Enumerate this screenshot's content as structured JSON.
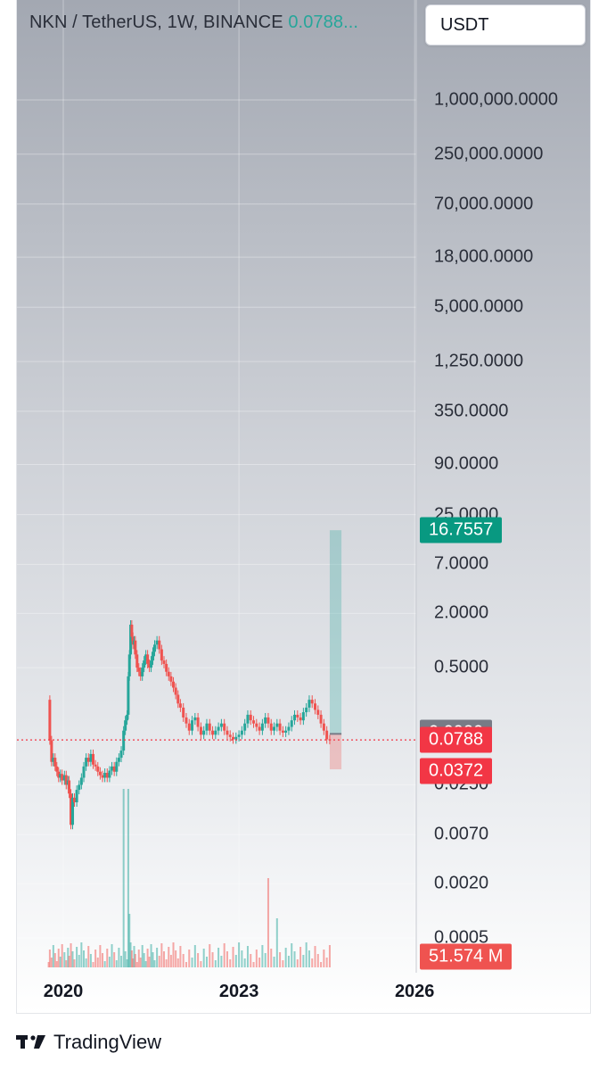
{
  "header": {
    "title_text": "NKN / TetherUS, 1W, BINANCE",
    "last_price_text": "0.0788...",
    "currency": "USDT"
  },
  "footer": {
    "brand": "TradingView",
    "logo_icon": "tradingview-logo-icon"
  },
  "colors": {
    "up": "#26a69a",
    "down": "#ef5350",
    "profit_zone": "#26a69a",
    "loss_zone": "#ef5350",
    "last_price_line": "#f23645",
    "entry_label": "#787b86",
    "target_label": "#089981",
    "stop_label": "#f23645",
    "last_label": "#f23645",
    "volume_label": "#ef5350"
  },
  "chart_data": {
    "type": "candlestick",
    "symbol": "NKN / TetherUS",
    "interval": "1W",
    "exchange": "BINANCE",
    "y_scale": "log",
    "y_ticks": [
      "1,000,000.0000",
      "250,000.0000",
      "70,000.0000",
      "18,000.0000",
      "5,000.0000",
      "1,250.0000",
      "350.0000",
      "90.0000",
      "25.0000",
      "7.0000",
      "2.0000",
      "0.5000",
      "0.0250",
      "0.0070",
      "0.0020",
      "0.0005"
    ],
    "y_tick_values": [
      1000000,
      250000,
      70000,
      18000,
      5000,
      1250,
      350,
      90,
      25,
      7,
      2,
      0.5,
      0.025,
      0.007,
      0.002,
      0.0005
    ],
    "x_ticks": [
      "2020",
      "2023",
      "2026"
    ],
    "x_tick_values": [
      2020,
      2023,
      2026
    ],
    "grid": true,
    "last_price": 0.0788,
    "price_labels": [
      {
        "key": "target",
        "text": "16.7557",
        "value": 16.7557
      },
      {
        "key": "entry",
        "text": "0.0920",
        "value": 0.092
      },
      {
        "key": "last",
        "text": "0.0788",
        "value": 0.0788
      },
      {
        "key": "stop",
        "text": "0.0372",
        "value": 0.0372
      }
    ],
    "volume_label": "51.574 M",
    "position": {
      "type": "long",
      "entry": 0.092,
      "target": 16.7557,
      "stop": 0.0372,
      "start": 2024.55,
      "end": 2024.75
    },
    "series_close": [
      [
        2019.75,
        0.22
      ],
      [
        2019.77,
        0.078
      ],
      [
        2019.8,
        0.045
      ],
      [
        2019.83,
        0.05
      ],
      [
        2019.86,
        0.04
      ],
      [
        2019.89,
        0.035
      ],
      [
        2019.92,
        0.03
      ],
      [
        2019.95,
        0.033
      ],
      [
        2019.98,
        0.028
      ],
      [
        2020.02,
        0.032
      ],
      [
        2020.05,
        0.025
      ],
      [
        2020.08,
        0.028
      ],
      [
        2020.1,
        0.02
      ],
      [
        2020.13,
        0.009
      ],
      [
        2020.16,
        0.018
      ],
      [
        2020.19,
        0.016
      ],
      [
        2020.23,
        0.022
      ],
      [
        2020.27,
        0.025
      ],
      [
        2020.31,
        0.03
      ],
      [
        2020.35,
        0.04
      ],
      [
        2020.39,
        0.05
      ],
      [
        2020.43,
        0.045
      ],
      [
        2020.47,
        0.055
      ],
      [
        2020.51,
        0.042
      ],
      [
        2020.55,
        0.04
      ],
      [
        2020.59,
        0.035
      ],
      [
        2020.63,
        0.032
      ],
      [
        2020.67,
        0.03
      ],
      [
        2020.71,
        0.034
      ],
      [
        2020.75,
        0.03
      ],
      [
        2020.79,
        0.036
      ],
      [
        2020.83,
        0.04
      ],
      [
        2020.87,
        0.035
      ],
      [
        2020.91,
        0.045
      ],
      [
        2020.95,
        0.05
      ],
      [
        2020.99,
        0.06
      ],
      [
        2021.03,
        0.1
      ],
      [
        2021.06,
        0.13
      ],
      [
        2021.09,
        0.15
      ],
      [
        2021.11,
        0.4
      ],
      [
        2021.13,
        0.7
      ],
      [
        2021.15,
        1.5
      ],
      [
        2021.17,
        1.1
      ],
      [
        2021.19,
        0.9
      ],
      [
        2021.21,
        1.0
      ],
      [
        2021.23,
        0.7
      ],
      [
        2021.26,
        0.5
      ],
      [
        2021.29,
        0.45
      ],
      [
        2021.32,
        0.4
      ],
      [
        2021.35,
        0.5
      ],
      [
        2021.38,
        0.6
      ],
      [
        2021.41,
        0.7
      ],
      [
        2021.44,
        0.55
      ],
      [
        2021.47,
        0.5
      ],
      [
        2021.5,
        0.6
      ],
      [
        2021.53,
        0.75
      ],
      [
        2021.56,
        0.9
      ],
      [
        2021.6,
        1.0
      ],
      [
        2021.64,
        0.8
      ],
      [
        2021.68,
        0.6
      ],
      [
        2021.72,
        0.55
      ],
      [
        2021.76,
        0.45
      ],
      [
        2021.8,
        0.4
      ],
      [
        2021.84,
        0.35
      ],
      [
        2021.88,
        0.3
      ],
      [
        2021.92,
        0.25
      ],
      [
        2021.96,
        0.2
      ],
      [
        2022.0,
        0.18
      ],
      [
        2022.05,
        0.14
      ],
      [
        2022.1,
        0.12
      ],
      [
        2022.15,
        0.1
      ],
      [
        2022.2,
        0.13
      ],
      [
        2022.25,
        0.14
      ],
      [
        2022.3,
        0.11
      ],
      [
        2022.35,
        0.09
      ],
      [
        2022.4,
        0.1
      ],
      [
        2022.45,
        0.12
      ],
      [
        2022.5,
        0.1
      ],
      [
        2022.55,
        0.09
      ],
      [
        2022.6,
        0.1
      ],
      [
        2022.65,
        0.11
      ],
      [
        2022.7,
        0.12
      ],
      [
        2022.75,
        0.1
      ],
      [
        2022.8,
        0.09
      ],
      [
        2022.85,
        0.085
      ],
      [
        2022.9,
        0.08
      ],
      [
        2022.95,
        0.085
      ],
      [
        2023.0,
        0.09
      ],
      [
        2023.05,
        0.1
      ],
      [
        2023.1,
        0.12
      ],
      [
        2023.15,
        0.15
      ],
      [
        2023.2,
        0.13
      ],
      [
        2023.25,
        0.12
      ],
      [
        2023.3,
        0.11
      ],
      [
        2023.35,
        0.1
      ],
      [
        2023.4,
        0.12
      ],
      [
        2023.45,
        0.14
      ],
      [
        2023.5,
        0.12
      ],
      [
        2023.55,
        0.1
      ],
      [
        2023.6,
        0.11
      ],
      [
        2023.65,
        0.12
      ],
      [
        2023.7,
        0.1
      ],
      [
        2023.75,
        0.095
      ],
      [
        2023.8,
        0.1
      ],
      [
        2023.85,
        0.11
      ],
      [
        2023.9,
        0.13
      ],
      [
        2023.95,
        0.15
      ],
      [
        2024.0,
        0.14
      ],
      [
        2024.05,
        0.13
      ],
      [
        2024.1,
        0.16
      ],
      [
        2024.15,
        0.18
      ],
      [
        2024.2,
        0.22
      ],
      [
        2024.25,
        0.2
      ],
      [
        2024.3,
        0.17
      ],
      [
        2024.35,
        0.15
      ],
      [
        2024.4,
        0.12
      ],
      [
        2024.45,
        0.1
      ],
      [
        2024.5,
        0.08
      ],
      [
        2024.55,
        0.0788
      ]
    ]
  }
}
